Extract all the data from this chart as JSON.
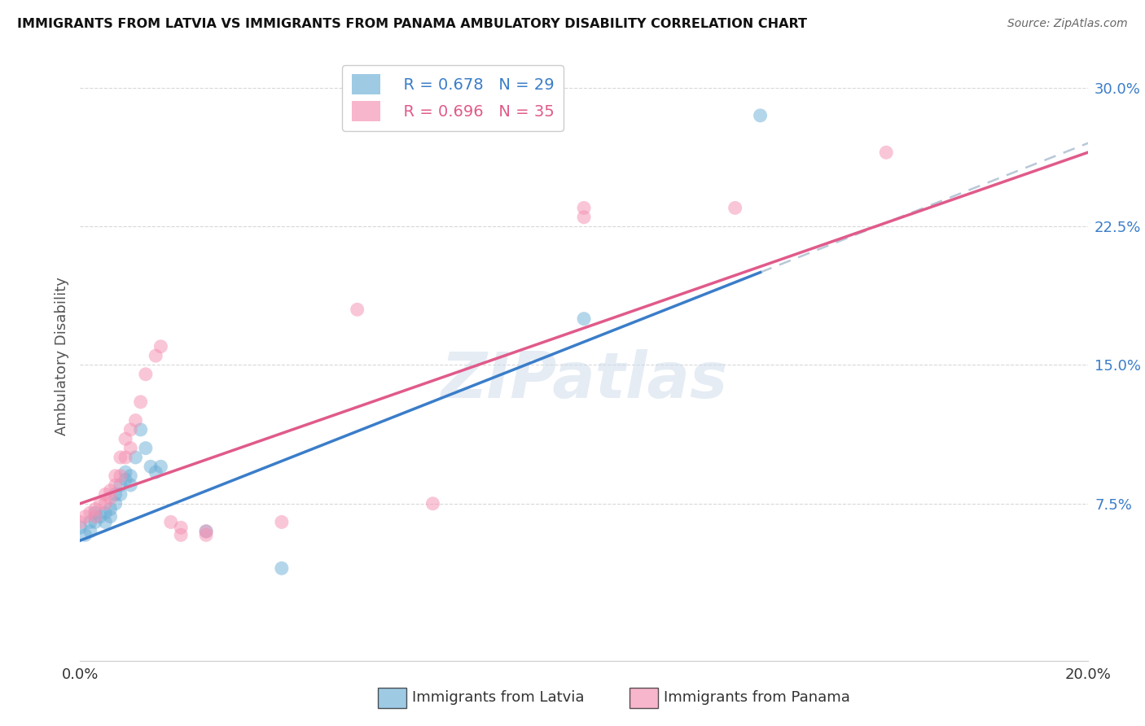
{
  "title": "IMMIGRANTS FROM LATVIA VS IMMIGRANTS FROM PANAMA AMBULATORY DISABILITY CORRELATION CHART",
  "source": "Source: ZipAtlas.com",
  "ylabel": "Ambulatory Disability",
  "xlim": [
    0.0,
    0.2
  ],
  "ylim": [
    -0.01,
    0.32
  ],
  "yticks": [
    0.075,
    0.15,
    0.225,
    0.3
  ],
  "ytick_labels": [
    "7.5%",
    "15.0%",
    "22.5%",
    "30.0%"
  ],
  "xticks": [
    0.0,
    0.04,
    0.08,
    0.12,
    0.16,
    0.2
  ],
  "xtick_labels": [
    "0.0%",
    "",
    "",
    "",
    "",
    "20.0%"
  ],
  "latvia_R": 0.678,
  "latvia_N": 29,
  "panama_R": 0.696,
  "panama_N": 35,
  "latvia_color": "#6baed6",
  "panama_color": "#f48fb1",
  "latvia_line_color": "#3a7dc9",
  "panama_line_color": "#e05a8a",
  "trendline_extend_color": "#b8c8d8",
  "latvia_trendline": [
    0.055,
    0.27
  ],
  "panama_trendline": [
    0.075,
    0.265
  ],
  "latvia_x": [
    0.0,
    0.001,
    0.002,
    0.002,
    0.003,
    0.003,
    0.004,
    0.005,
    0.005,
    0.006,
    0.006,
    0.007,
    0.007,
    0.008,
    0.008,
    0.009,
    0.009,
    0.01,
    0.01,
    0.011,
    0.012,
    0.013,
    0.014,
    0.015,
    0.016,
    0.025,
    0.04,
    0.1,
    0.135
  ],
  "latvia_y": [
    0.062,
    0.058,
    0.06,
    0.065,
    0.065,
    0.07,
    0.068,
    0.065,
    0.07,
    0.068,
    0.072,
    0.075,
    0.08,
    0.08,
    0.085,
    0.088,
    0.092,
    0.085,
    0.09,
    0.1,
    0.115,
    0.105,
    0.095,
    0.092,
    0.095,
    0.06,
    0.04,
    0.175,
    0.285
  ],
  "panama_x": [
    0.0,
    0.001,
    0.002,
    0.003,
    0.003,
    0.004,
    0.005,
    0.005,
    0.006,
    0.006,
    0.007,
    0.007,
    0.008,
    0.008,
    0.009,
    0.009,
    0.01,
    0.01,
    0.011,
    0.012,
    0.013,
    0.015,
    0.016,
    0.018,
    0.02,
    0.02,
    0.025,
    0.025,
    0.04,
    0.055,
    0.07,
    0.1,
    0.1,
    0.13,
    0.16
  ],
  "panama_y": [
    0.065,
    0.068,
    0.07,
    0.068,
    0.072,
    0.075,
    0.075,
    0.08,
    0.078,
    0.082,
    0.085,
    0.09,
    0.09,
    0.1,
    0.1,
    0.11,
    0.105,
    0.115,
    0.12,
    0.13,
    0.145,
    0.155,
    0.16,
    0.065,
    0.062,
    0.058,
    0.058,
    0.06,
    0.065,
    0.18,
    0.075,
    0.23,
    0.235,
    0.235,
    0.265
  ],
  "watermark": "ZIPatlas",
  "background_color": "#ffffff",
  "grid_color": "#d8d8d8"
}
